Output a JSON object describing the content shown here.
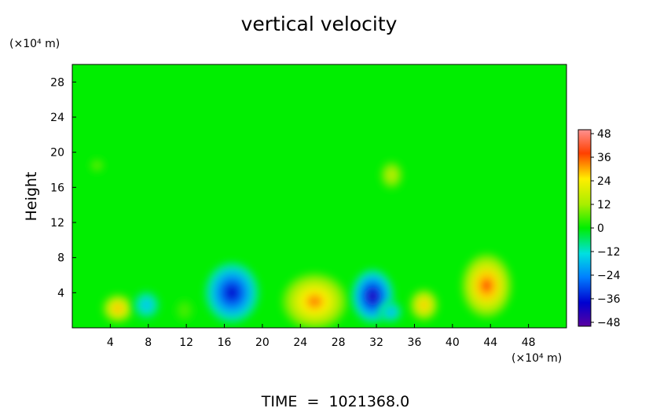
{
  "chart_data": {
    "type": "heatmap",
    "title": "vertical velocity",
    "ylabel": "Height",
    "y_unit": "(×10⁴ m)",
    "x_unit": "(×10⁴ m)",
    "footer": "TIME  =  1021368.0",
    "xlim": [
      0,
      52
    ],
    "ylim": [
      0,
      30
    ],
    "x_ticks": [
      "4",
      "8",
      "12",
      "16",
      "20",
      "24",
      "28",
      "32",
      "36",
      "40",
      "44",
      "48"
    ],
    "y_ticks": [
      "4",
      "8",
      "12",
      "16",
      "20",
      "24",
      "28"
    ],
    "colorbar": {
      "min": -50,
      "max": 50,
      "ticks": [
        "48",
        "36",
        "24",
        "12",
        "0",
        "−12",
        "−24",
        "−36",
        "−48"
      ]
    },
    "background_value": 0,
    "features": [
      {
        "x": 4.8,
        "y": 2.2,
        "rx": 1.6,
        "ry": 1.6,
        "value": 30
      },
      {
        "x": 7.8,
        "y": 2.6,
        "rx": 1.4,
        "ry": 1.6,
        "value": -18
      },
      {
        "x": 11.8,
        "y": 2.0,
        "rx": 1.0,
        "ry": 1.3,
        "value": 6
      },
      {
        "x": 16.8,
        "y": 4.0,
        "rx": 2.8,
        "ry": 3.4,
        "value": -38
      },
      {
        "x": 25.5,
        "y": 3.0,
        "rx": 3.4,
        "ry": 3.2,
        "value": 32
      },
      {
        "x": 31.6,
        "y": 3.6,
        "rx": 2.2,
        "ry": 3.0,
        "value": -42
      },
      {
        "x": 37.0,
        "y": 2.6,
        "rx": 1.5,
        "ry": 1.8,
        "value": 28
      },
      {
        "x": 43.6,
        "y": 4.8,
        "rx": 2.6,
        "ry": 3.6,
        "value": 36
      },
      {
        "x": 33.5,
        "y": 1.8,
        "rx": 1.2,
        "ry": 1.2,
        "value": -20
      },
      {
        "x": 33.6,
        "y": 17.4,
        "rx": 1.2,
        "ry": 1.6,
        "value": 16
      },
      {
        "x": 2.6,
        "y": 18.5,
        "rx": 0.8,
        "ry": 0.8,
        "value": 8
      }
    ]
  }
}
